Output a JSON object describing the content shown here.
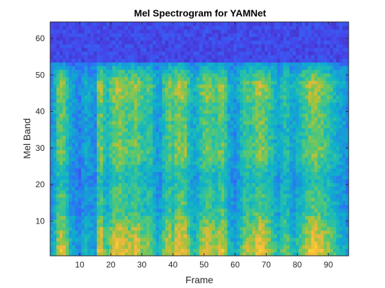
{
  "chart_data": {
    "type": "heatmap",
    "title": "Mel Spectrogram for YAMNet",
    "xlabel": "Frame",
    "ylabel": "Mel Band",
    "xlim": [
      0.5,
      96.5
    ],
    "ylim": [
      0.5,
      64.5
    ],
    "xticks": [
      10,
      20,
      30,
      40,
      50,
      60,
      70,
      80,
      90
    ],
    "yticks": [
      10,
      20,
      30,
      40,
      50,
      60
    ],
    "n_frames": 96,
    "n_bands": 64,
    "colormap": [
      "#3e26a8",
      "#4744e9",
      "#2d6ff8",
      "#1c93de",
      "#0fafcc",
      "#25c0aa",
      "#5cc86c",
      "#b2c136",
      "#f3b640",
      "#f9d72a",
      "#f9fb15"
    ],
    "value_range": [
      0,
      1
    ],
    "upper_band_floor_start": 54,
    "frame_energy_profile": [
      0.3,
      0.45,
      0.75,
      0.85,
      0.8,
      0.6,
      0.4,
      0.3,
      0.25,
      0.2,
      0.3,
      0.4,
      0.35,
      0.3,
      0.25,
      0.8,
      0.85,
      0.6,
      0.55,
      0.7,
      0.85,
      0.9,
      0.9,
      0.85,
      0.8,
      0.75,
      0.8,
      0.85,
      0.8,
      0.7,
      0.65,
      0.7,
      0.65,
      0.5,
      0.35,
      0.4,
      0.6,
      0.75,
      0.8,
      0.7,
      0.85,
      0.9,
      0.9,
      0.85,
      0.65,
      0.5,
      0.45,
      0.55,
      0.7,
      0.8,
      0.85,
      0.8,
      0.75,
      0.7,
      0.8,
      0.85,
      0.7,
      0.45,
      0.35,
      0.3,
      0.4,
      0.55,
      0.7,
      0.75,
      0.7,
      0.75,
      0.85,
      0.9,
      0.85,
      0.8,
      0.7,
      0.6,
      0.5,
      0.4,
      0.55,
      0.65,
      0.6,
      0.45,
      0.4,
      0.5,
      0.6,
      0.7,
      0.8,
      0.85,
      0.9,
      0.9,
      0.85,
      0.8,
      0.75,
      0.7,
      0.6,
      0.55,
      0.45,
      0.4,
      0.35,
      0.3
    ],
    "band_energy_profile": [
      0.85,
      0.88,
      0.85,
      0.82,
      0.8,
      0.78,
      0.76,
      0.74,
      0.7,
      0.66,
      0.62,
      0.58,
      0.56,
      0.55,
      0.55,
      0.56,
      0.56,
      0.55,
      0.52,
      0.48,
      0.46,
      0.46,
      0.48,
      0.52,
      0.55,
      0.58,
      0.62,
      0.64,
      0.66,
      0.66,
      0.64,
      0.62,
      0.6,
      0.58,
      0.58,
      0.6,
      0.62,
      0.63,
      0.62,
      0.6,
      0.6,
      0.62,
      0.65,
      0.68,
      0.7,
      0.72,
      0.72,
      0.7,
      0.65,
      0.58,
      0.5,
      0.42,
      0.3,
      0.18,
      0.12,
      0.08,
      0.06,
      0.05,
      0.05,
      0.05,
      0.05,
      0.05,
      0.05,
      0.05
    ]
  }
}
